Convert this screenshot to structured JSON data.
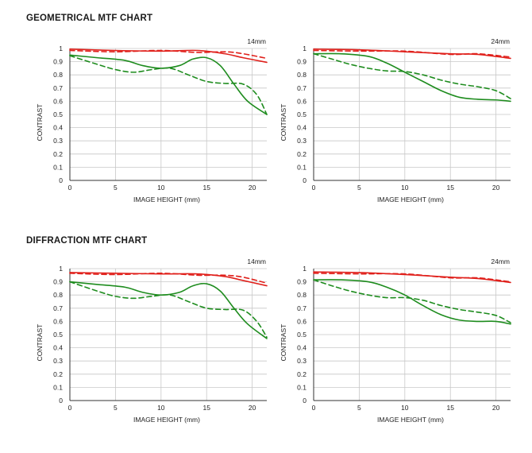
{
  "sections": [
    {
      "title": "GEOMETRICAL MTF CHART"
    },
    {
      "title": "DIFFRACTION MTF CHART"
    }
  ],
  "colors": {
    "sagittal": "#e0201b",
    "meridional": "#1e8c1e",
    "grid": "#c8c8c8",
    "axis": "#333333"
  },
  "chart_data": [
    {
      "type": "line",
      "section": "GEOMETRICAL MTF CHART",
      "label": "14mm",
      "xlabel": "IMAGE HEIGHT (mm)",
      "ylabel": "CONTRAST",
      "xlim": [
        0,
        21.6
      ],
      "ylim": [
        0,
        1
      ],
      "xticks": [
        0,
        5,
        10,
        15,
        20
      ],
      "yticks": [
        0,
        0.1,
        0.2,
        0.3,
        0.4,
        0.5,
        0.6,
        0.7,
        0.8,
        0.9,
        1
      ],
      "grid": true,
      "series": [
        {
          "color": "red",
          "dash": "solid",
          "x": [
            0,
            5,
            10,
            14,
            17,
            19,
            21.6
          ],
          "y": [
            0.995,
            0.985,
            0.98,
            0.985,
            0.96,
            0.93,
            0.895
          ]
        },
        {
          "color": "red",
          "dash": "dashed",
          "x": [
            0,
            5,
            10,
            14,
            17,
            19,
            21.6
          ],
          "y": [
            0.985,
            0.975,
            0.985,
            0.97,
            0.975,
            0.96,
            0.925
          ]
        },
        {
          "color": "green",
          "dash": "solid",
          "x": [
            0,
            3,
            6,
            8,
            10,
            12,
            13.5,
            15,
            16.5,
            18,
            19.5,
            21.6
          ],
          "y": [
            0.95,
            0.93,
            0.91,
            0.87,
            0.85,
            0.87,
            0.92,
            0.93,
            0.87,
            0.73,
            0.6,
            0.5
          ]
        },
        {
          "color": "green",
          "dash": "dashed",
          "x": [
            0,
            3,
            5,
            7,
            9,
            11,
            13,
            15,
            17,
            19,
            20.5,
            21.6
          ],
          "y": [
            0.945,
            0.88,
            0.84,
            0.82,
            0.84,
            0.85,
            0.8,
            0.75,
            0.735,
            0.73,
            0.65,
            0.5
          ]
        }
      ]
    },
    {
      "type": "line",
      "section": "GEOMETRICAL MTF CHART",
      "label": "24mm",
      "xlabel": "IMAGE HEIGHT (mm)",
      "ylabel": "CONTRAST",
      "xlim": [
        0,
        21.6
      ],
      "ylim": [
        0,
        1
      ],
      "xticks": [
        0,
        5,
        10,
        15,
        20
      ],
      "yticks": [
        0,
        0.1,
        0.2,
        0.3,
        0.4,
        0.5,
        0.6,
        0.7,
        0.8,
        0.9,
        1
      ],
      "grid": true,
      "series": [
        {
          "color": "red",
          "dash": "solid",
          "x": [
            0,
            5,
            10,
            15,
            18,
            21.6
          ],
          "y": [
            0.995,
            0.99,
            0.975,
            0.96,
            0.955,
            0.925
          ]
        },
        {
          "color": "red",
          "dash": "dashed",
          "x": [
            0,
            5,
            10,
            15,
            18,
            21.6
          ],
          "y": [
            0.985,
            0.98,
            0.98,
            0.955,
            0.96,
            0.935
          ]
        },
        {
          "color": "green",
          "dash": "solid",
          "x": [
            0,
            3,
            6,
            8,
            10,
            12,
            14,
            16,
            18,
            20,
            21.6
          ],
          "y": [
            0.96,
            0.96,
            0.94,
            0.89,
            0.82,
            0.75,
            0.68,
            0.63,
            0.615,
            0.61,
            0.6
          ]
        },
        {
          "color": "green",
          "dash": "dashed",
          "x": [
            0,
            2,
            4,
            6,
            8,
            10,
            12,
            14,
            16,
            18,
            20,
            21.6
          ],
          "y": [
            0.96,
            0.92,
            0.88,
            0.85,
            0.83,
            0.825,
            0.8,
            0.76,
            0.73,
            0.71,
            0.68,
            0.62
          ]
        }
      ]
    },
    {
      "type": "line",
      "section": "DIFFRACTION MTF CHART",
      "label": "14mm",
      "xlabel": "IMAGE HEIGHT (mm)",
      "ylabel": "CONTRAST",
      "xlim": [
        0,
        21.6
      ],
      "ylim": [
        0,
        1
      ],
      "xticks": [
        0,
        5,
        10,
        15,
        20
      ],
      "yticks": [
        0,
        0.1,
        0.2,
        0.3,
        0.4,
        0.5,
        0.6,
        0.7,
        0.8,
        0.9,
        1
      ],
      "grid": true,
      "series": [
        {
          "color": "red",
          "dash": "solid",
          "x": [
            0,
            5,
            10,
            14,
            17,
            19,
            21.6
          ],
          "y": [
            0.97,
            0.965,
            0.96,
            0.96,
            0.94,
            0.91,
            0.87
          ]
        },
        {
          "color": "red",
          "dash": "dashed",
          "x": [
            0,
            5,
            10,
            14,
            17,
            19,
            21.6
          ],
          "y": [
            0.965,
            0.955,
            0.965,
            0.95,
            0.95,
            0.935,
            0.89
          ]
        },
        {
          "color": "green",
          "dash": "solid",
          "x": [
            0,
            3,
            6,
            8,
            10,
            12,
            13.5,
            15,
            16.5,
            18,
            19.5,
            21.6
          ],
          "y": [
            0.9,
            0.88,
            0.86,
            0.82,
            0.8,
            0.82,
            0.87,
            0.885,
            0.83,
            0.7,
            0.58,
            0.47
          ]
        },
        {
          "color": "green",
          "dash": "dashed",
          "x": [
            0,
            3,
            5,
            7,
            9,
            11,
            13,
            15,
            17,
            19,
            20.5,
            21.6
          ],
          "y": [
            0.9,
            0.83,
            0.79,
            0.775,
            0.79,
            0.8,
            0.75,
            0.7,
            0.69,
            0.685,
            0.6,
            0.48
          ]
        }
      ]
    },
    {
      "type": "line",
      "section": "DIFFRACTION MTF CHART",
      "label": "24mm",
      "xlabel": "IMAGE HEIGHT (mm)",
      "ylabel": "CONTRAST",
      "xlim": [
        0,
        21.6
      ],
      "ylim": [
        0,
        1
      ],
      "xticks": [
        0,
        5,
        10,
        15,
        20
      ],
      "yticks": [
        0,
        0.1,
        0.2,
        0.3,
        0.4,
        0.5,
        0.6,
        0.7,
        0.8,
        0.9,
        1
      ],
      "grid": true,
      "series": [
        {
          "color": "red",
          "dash": "solid",
          "x": [
            0,
            5,
            10,
            15,
            18,
            21.6
          ],
          "y": [
            0.975,
            0.97,
            0.955,
            0.935,
            0.925,
            0.895
          ]
        },
        {
          "color": "red",
          "dash": "dashed",
          "x": [
            0,
            5,
            10,
            15,
            18,
            21.6
          ],
          "y": [
            0.965,
            0.96,
            0.96,
            0.93,
            0.93,
            0.9
          ]
        },
        {
          "color": "green",
          "dash": "solid",
          "x": [
            0,
            3,
            6,
            8,
            10,
            12,
            14,
            16,
            18,
            20,
            21.6
          ],
          "y": [
            0.915,
            0.915,
            0.9,
            0.86,
            0.8,
            0.72,
            0.65,
            0.61,
            0.6,
            0.6,
            0.58
          ]
        },
        {
          "color": "green",
          "dash": "dashed",
          "x": [
            0,
            2,
            4,
            6,
            8,
            10,
            12,
            14,
            16,
            18,
            20,
            21.6
          ],
          "y": [
            0.915,
            0.87,
            0.83,
            0.8,
            0.78,
            0.78,
            0.76,
            0.72,
            0.69,
            0.67,
            0.645,
            0.59
          ]
        }
      ]
    }
  ]
}
